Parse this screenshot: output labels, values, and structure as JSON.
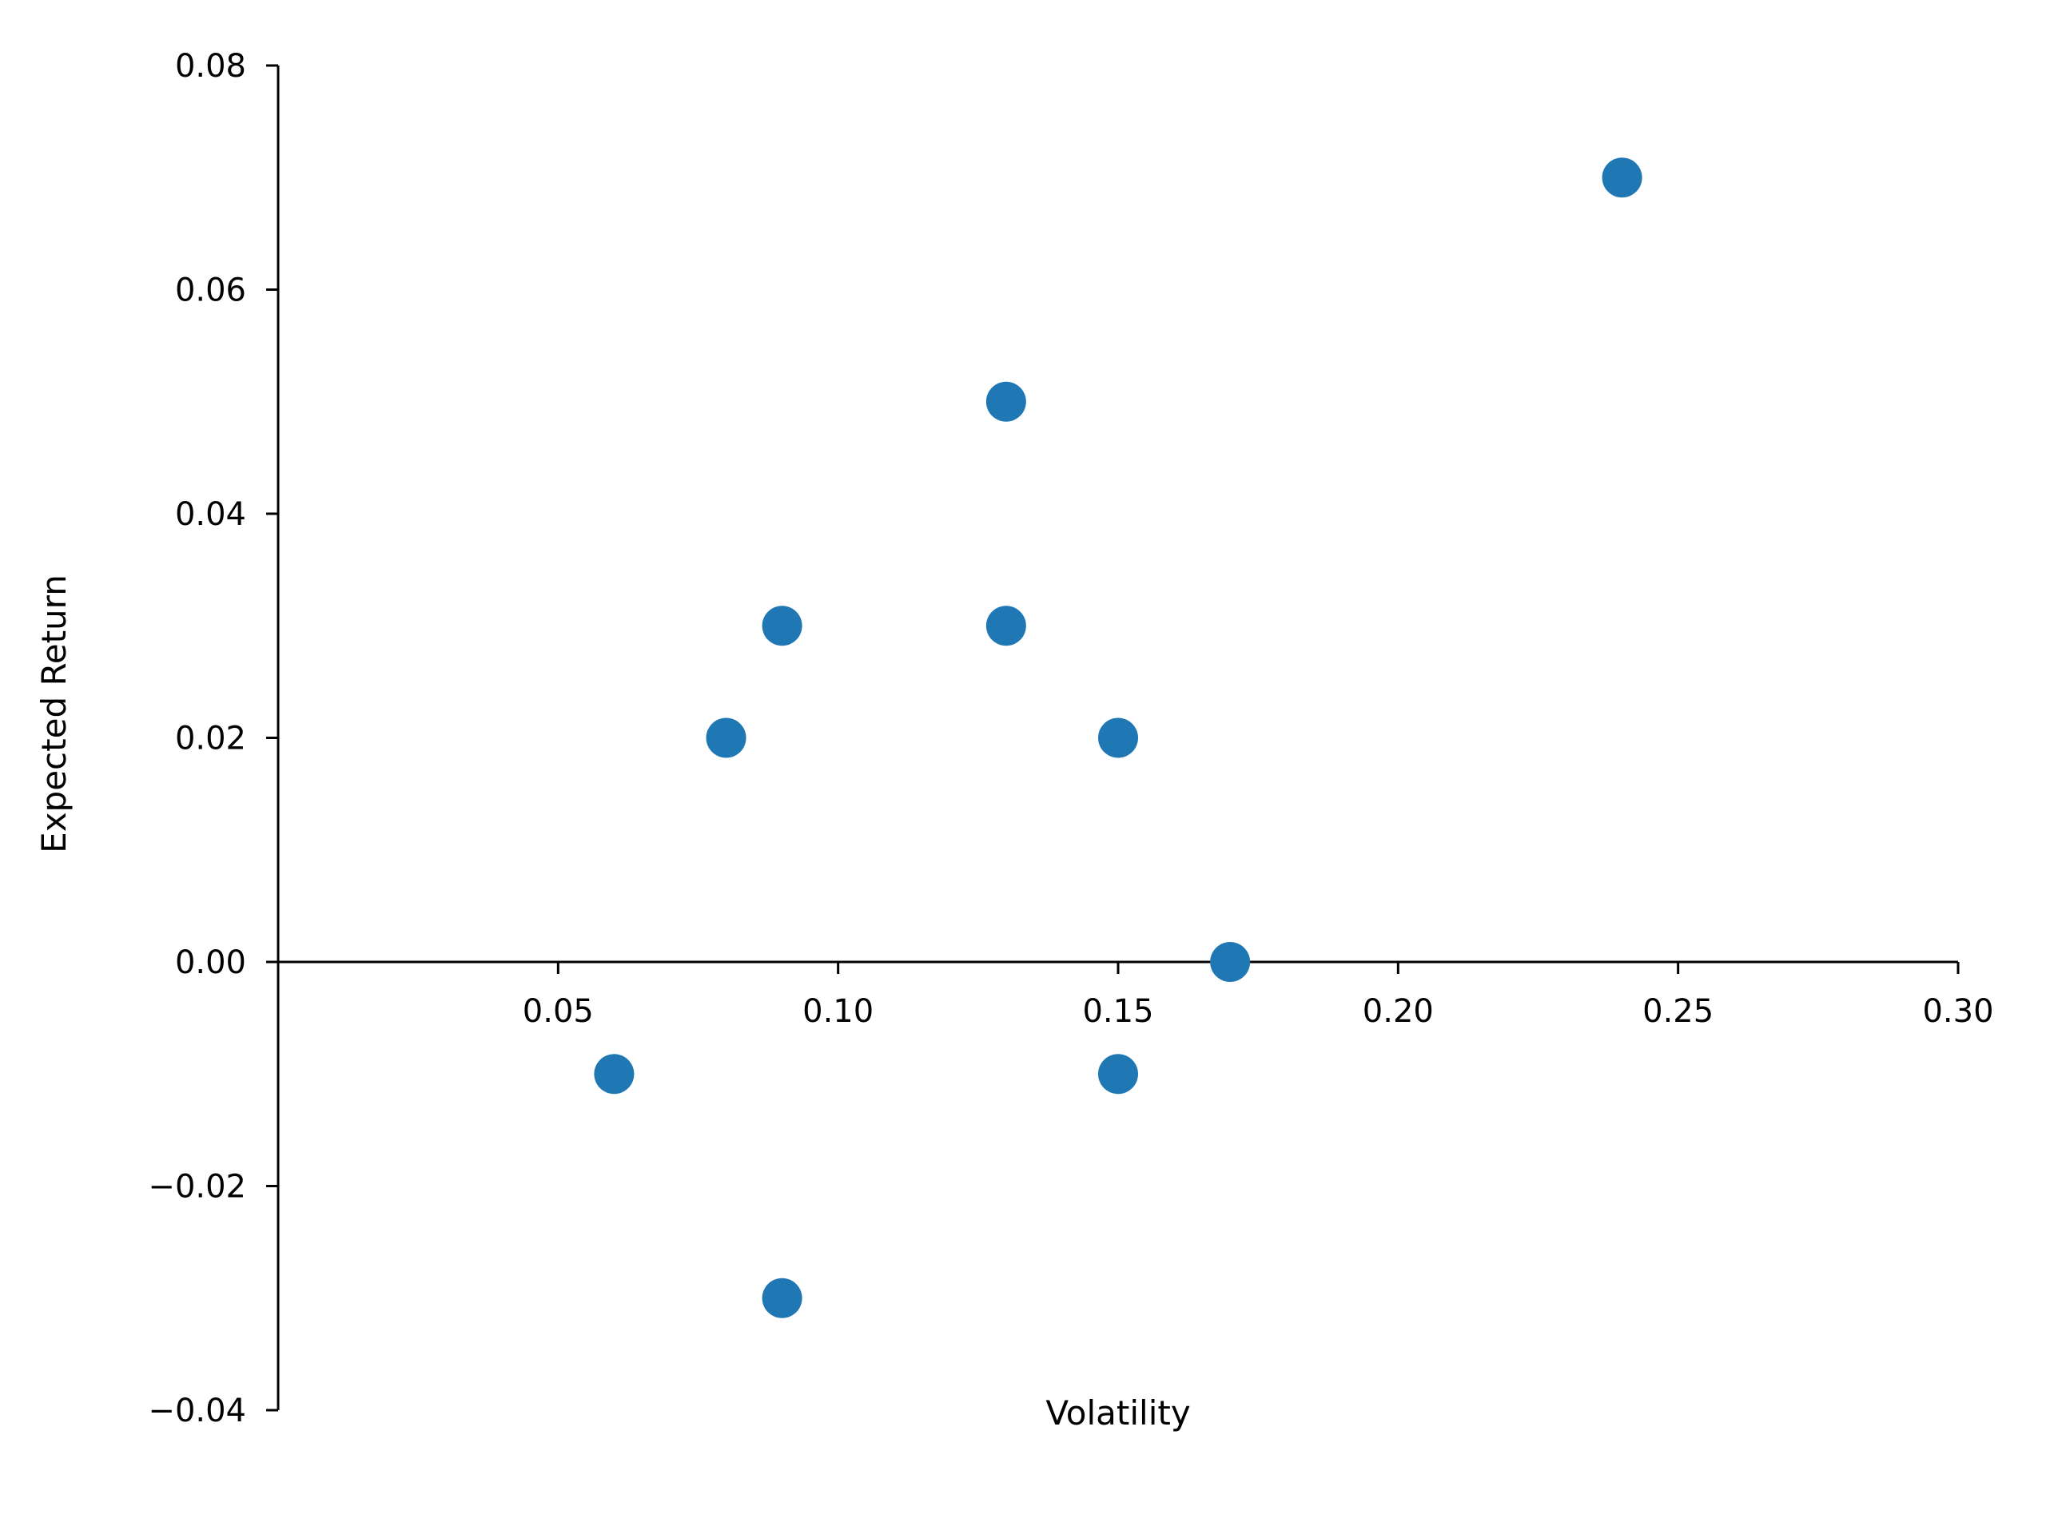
{
  "chart_data": {
    "type": "scatter",
    "title": "",
    "xlabel": "Volatility",
    "ylabel": "Expected Return",
    "xlim": [
      0.0,
      0.3
    ],
    "ylim": [
      -0.04,
      0.08
    ],
    "xticks": [
      0.05,
      0.1,
      0.15,
      0.2,
      0.25,
      0.3
    ],
    "xtick_labels": [
      "0.05",
      "0.10",
      "0.15",
      "0.20",
      "0.25",
      "0.30"
    ],
    "yticks": [
      -0.04,
      -0.02,
      0.0,
      0.02,
      0.04,
      0.06,
      0.08
    ],
    "ytick_labels": [
      "−0.04",
      "−0.02",
      "0.00",
      "0.02",
      "0.04",
      "0.06",
      "0.08"
    ],
    "grid": false,
    "color": "#1f77b4",
    "points": [
      {
        "x": 0.06,
        "y": -0.01
      },
      {
        "x": 0.08,
        "y": 0.02
      },
      {
        "x": 0.09,
        "y": 0.03
      },
      {
        "x": 0.09,
        "y": -0.03
      },
      {
        "x": 0.13,
        "y": 0.05
      },
      {
        "x": 0.13,
        "y": 0.03
      },
      {
        "x": 0.15,
        "y": 0.02
      },
      {
        "x": 0.15,
        "y": -0.01
      },
      {
        "x": 0.17,
        "y": 0.0
      },
      {
        "x": 0.24,
        "y": 0.07
      }
    ]
  }
}
